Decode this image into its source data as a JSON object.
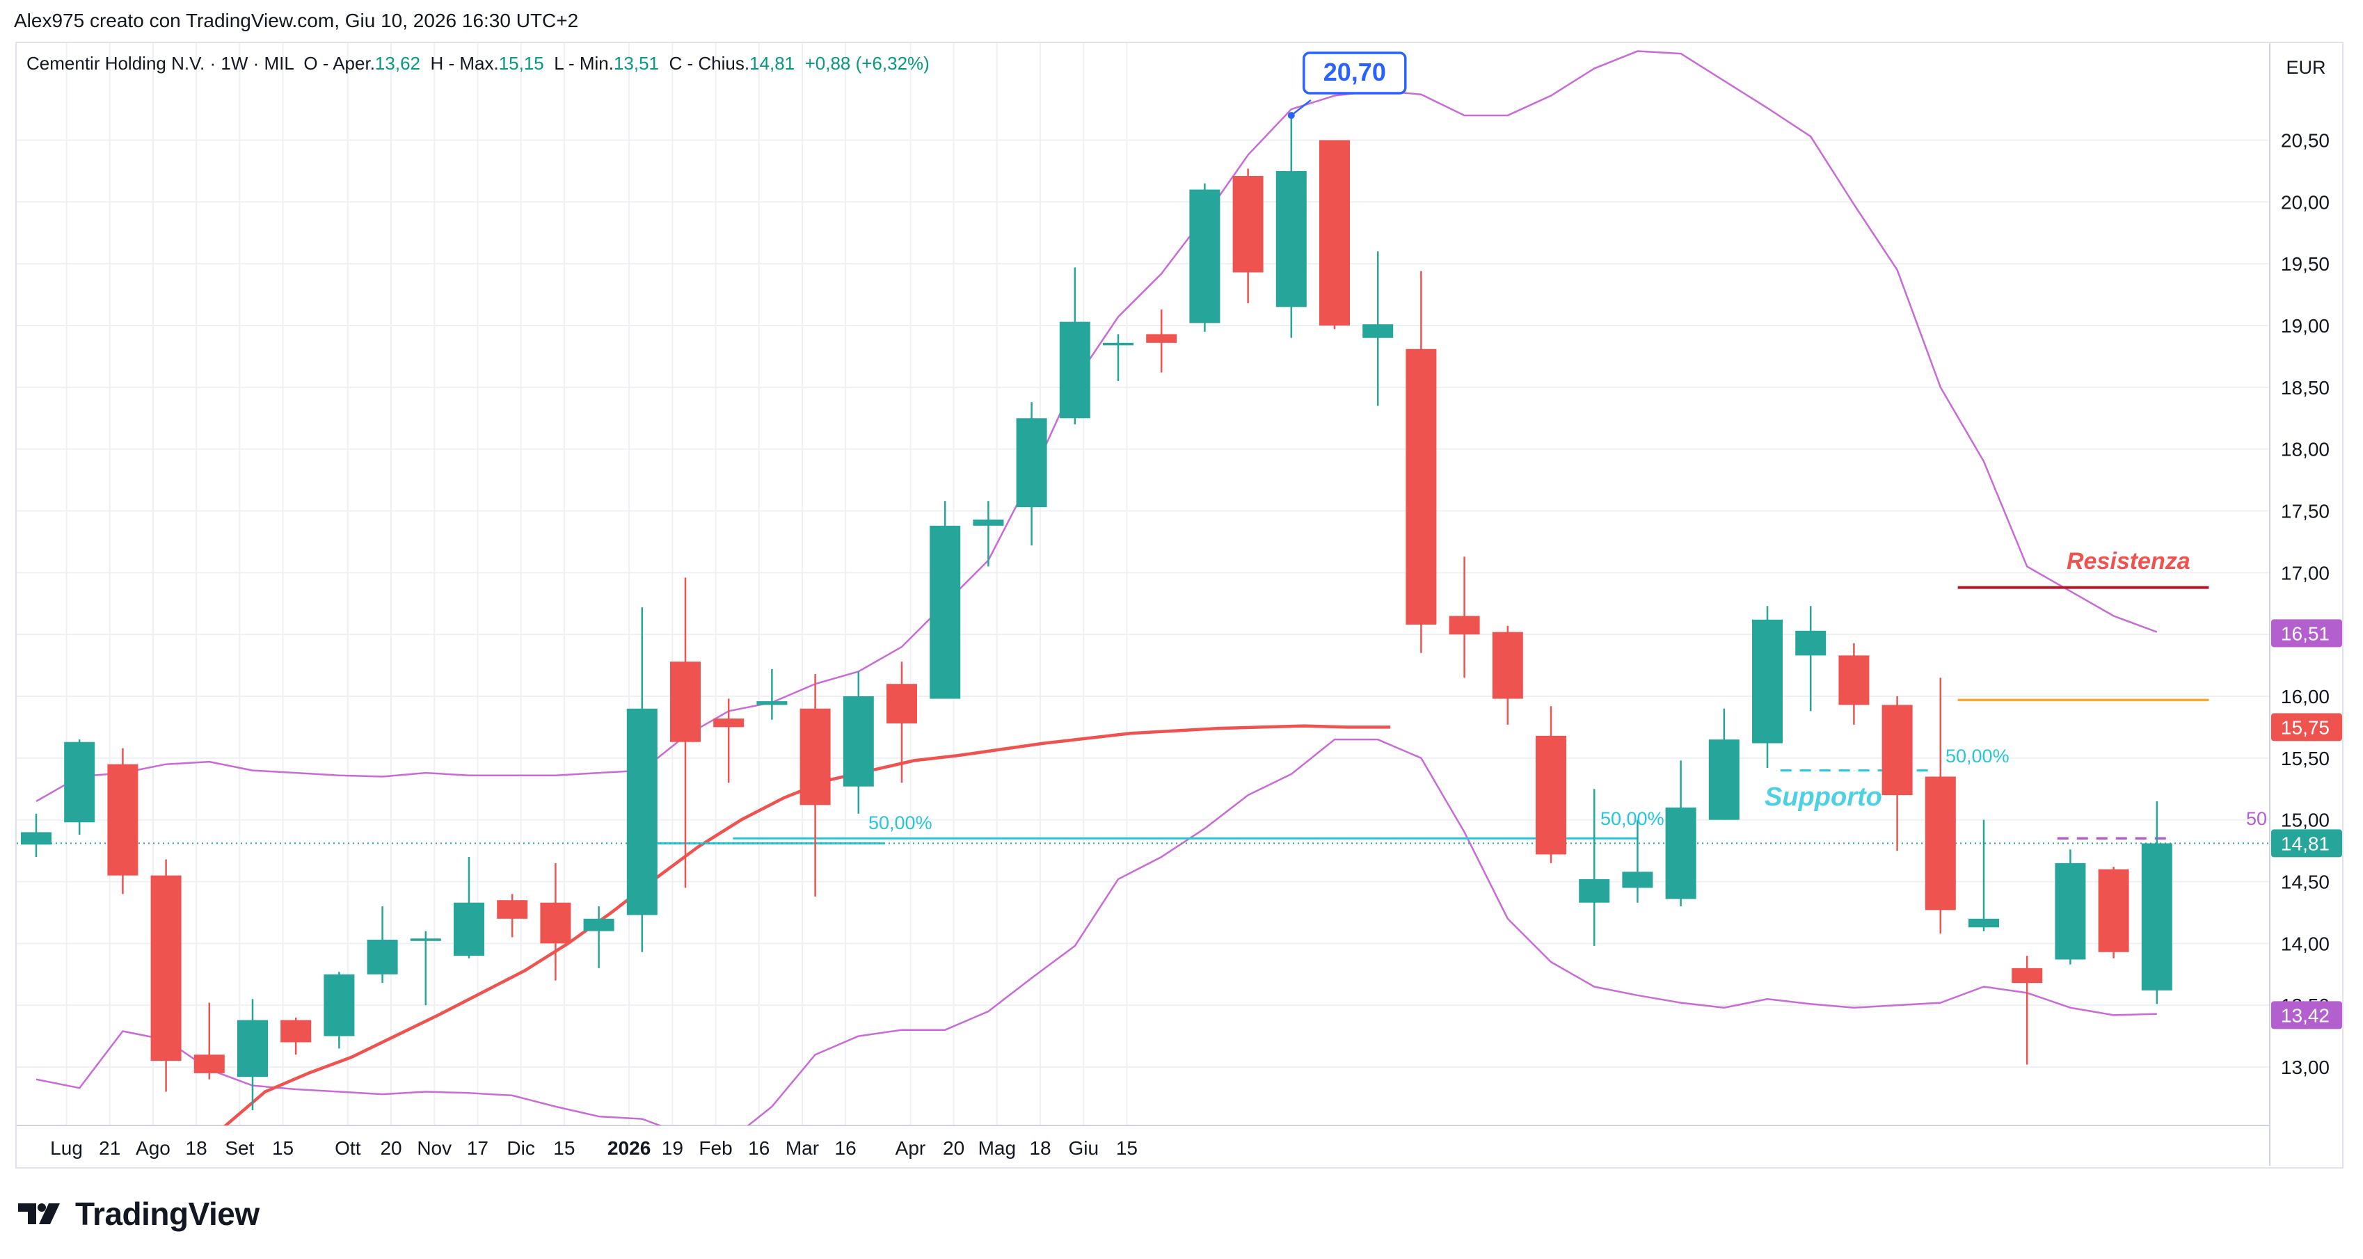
{
  "header": {
    "author_line": "Alex975 creato con TradingView.com, Giu 10, 2026 16:30 UTC+2"
  },
  "legend": {
    "symbol_info": "Cementir Holding N.V. · 1W · MIL",
    "open_label": "O - Aper.",
    "open_value": "13,62",
    "high_label": "H - Max.",
    "high_value": "15,15",
    "low_label": "L - Min.",
    "low_value": "13,51",
    "close_label": "C - Chius.",
    "close_value": "14,81",
    "change_value": "+0,88 (+6,32%)"
  },
  "brand": {
    "name": "TradingView"
  },
  "colors": {
    "up": "#26a69a",
    "down": "#ef5350",
    "bollinger": "#c86bd6",
    "ma": "#ef5350",
    "fib": "#26c6da",
    "grid": "#eef0f4",
    "resistance": "#b2182b",
    "orange_level": "#ffa726",
    "label_purple": "#b35fce"
  },
  "chart_data": {
    "type": "candlestick",
    "currency": "EUR",
    "ylim": [
      12.5,
      21.3
    ],
    "y_ticks": [
      {
        "value": 13.0,
        "label": "13,00"
      },
      {
        "value": 13.5,
        "label": "13,50"
      },
      {
        "value": 14.0,
        "label": "14,00"
      },
      {
        "value": 14.5,
        "label": "14,50"
      },
      {
        "value": 15.0,
        "label": "15,00"
      },
      {
        "value": 15.5,
        "label": "15,50"
      },
      {
        "value": 16.0,
        "label": "16,00"
      },
      {
        "value": 16.5,
        "label": "16,50"
      },
      {
        "value": 17.0,
        "label": "17,00"
      },
      {
        "value": 17.5,
        "label": "17,50"
      },
      {
        "value": 18.0,
        "label": "18,00"
      },
      {
        "value": 18.5,
        "label": "18,50"
      },
      {
        "value": 19.0,
        "label": "19,00"
      },
      {
        "value": 19.5,
        "label": "19,50"
      },
      {
        "value": 20.0,
        "label": "20,00"
      },
      {
        "value": 20.5,
        "label": "20,50"
      }
    ],
    "x_ticks": [
      {
        "index": 0.7,
        "label": "Lug",
        "bold": false
      },
      {
        "index": 1.7,
        "label": "21",
        "bold": false
      },
      {
        "index": 2.7,
        "label": "Ago",
        "bold": false
      },
      {
        "index": 3.7,
        "label": "18",
        "bold": false
      },
      {
        "index": 4.7,
        "label": "Set",
        "bold": false
      },
      {
        "index": 5.7,
        "label": "15",
        "bold": false
      },
      {
        "index": 7.2,
        "label": "Ott",
        "bold": false
      },
      {
        "index": 8.2,
        "label": "20",
        "bold": false
      },
      {
        "index": 9.2,
        "label": "Nov",
        "bold": false
      },
      {
        "index": 10.2,
        "label": "17",
        "bold": false
      },
      {
        "index": 11.2,
        "label": "Dic",
        "bold": false
      },
      {
        "index": 12.2,
        "label": "15",
        "bold": false
      },
      {
        "index": 13.7,
        "label": "2026",
        "bold": true
      },
      {
        "index": 14.7,
        "label": "19",
        "bold": false
      },
      {
        "index": 15.7,
        "label": "Feb",
        "bold": false
      },
      {
        "index": 16.7,
        "label": "16",
        "bold": false
      },
      {
        "index": 17.7,
        "label": "Mar",
        "bold": false
      },
      {
        "index": 18.7,
        "label": "16",
        "bold": false
      },
      {
        "index": 20.2,
        "label": "Apr",
        "bold": false
      },
      {
        "index": 21.2,
        "label": "20",
        "bold": false
      },
      {
        "index": 22.2,
        "label": "Mag",
        "bold": false
      },
      {
        "index": 23.2,
        "label": "18",
        "bold": false
      },
      {
        "index": 24.2,
        "label": "Giu",
        "bold": false
      },
      {
        "index": 25.2,
        "label": "15",
        "bold": false
      }
    ],
    "candles": [
      {
        "o": 14.8,
        "h": 15.05,
        "l": 14.7,
        "c": 14.9
      },
      {
        "o": 14.98,
        "h": 15.65,
        "l": 14.88,
        "c": 15.63
      },
      {
        "o": 15.45,
        "h": 15.58,
        "l": 14.4,
        "c": 14.55
      },
      {
        "o": 14.55,
        "h": 14.68,
        "l": 12.8,
        "c": 13.05
      },
      {
        "o": 13.1,
        "h": 13.52,
        "l": 12.9,
        "c": 12.95
      },
      {
        "o": 12.92,
        "h": 13.55,
        "l": 12.65,
        "c": 13.38
      },
      {
        "o": 13.38,
        "h": 13.4,
        "l": 13.1,
        "c": 13.2
      },
      {
        "o": 13.25,
        "h": 13.77,
        "l": 13.15,
        "c": 13.75
      },
      {
        "o": 13.75,
        "h": 14.3,
        "l": 13.68,
        "c": 14.03
      },
      {
        "o": 14.02,
        "h": 14.1,
        "l": 13.5,
        "c": 14.04
      },
      {
        "o": 13.9,
        "h": 14.7,
        "l": 13.88,
        "c": 14.33
      },
      {
        "o": 14.35,
        "h": 14.4,
        "l": 14.05,
        "c": 14.2
      },
      {
        "o": 14.33,
        "h": 14.65,
        "l": 13.7,
        "c": 14.0
      },
      {
        "o": 14.1,
        "h": 14.3,
        "l": 13.8,
        "c": 14.2
      },
      {
        "o": 14.23,
        "h": 16.72,
        "l": 13.93,
        "c": 15.9
      },
      {
        "o": 16.28,
        "h": 16.96,
        "l": 14.45,
        "c": 15.63
      },
      {
        "o": 15.82,
        "h": 15.98,
        "l": 15.3,
        "c": 15.75
      },
      {
        "o": 15.93,
        "h": 16.22,
        "l": 15.81,
        "c": 15.96
      },
      {
        "o": 15.9,
        "h": 16.18,
        "l": 14.38,
        "c": 15.12
      },
      {
        "o": 15.27,
        "h": 16.2,
        "l": 15.05,
        "c": 16.0
      },
      {
        "o": 16.1,
        "h": 16.28,
        "l": 15.3,
        "c": 15.78
      },
      {
        "o": 15.98,
        "h": 17.58,
        "l": 15.98,
        "c": 17.38
      },
      {
        "o": 17.38,
        "h": 17.58,
        "l": 17.05,
        "c": 17.43
      },
      {
        "o": 17.53,
        "h": 18.38,
        "l": 17.22,
        "c": 18.25
      },
      {
        "o": 18.25,
        "h": 19.47,
        "l": 18.2,
        "c": 19.03
      },
      {
        "o": 18.84,
        "h": 18.93,
        "l": 18.55,
        "c": 18.86
      },
      {
        "o": 18.93,
        "h": 19.13,
        "l": 18.62,
        "c": 18.86
      },
      {
        "o": 19.02,
        "h": 20.15,
        "l": 18.95,
        "c": 20.1
      },
      {
        "o": 20.21,
        "h": 20.27,
        "l": 19.18,
        "c": 19.43
      },
      {
        "o": 19.15,
        "h": 20.7,
        "l": 18.9,
        "c": 20.25
      },
      {
        "o": 20.5,
        "h": 20.5,
        "l": 18.97,
        "c": 19.0
      },
      {
        "o": 18.9,
        "h": 19.6,
        "l": 18.35,
        "c": 19.01
      },
      {
        "o": 18.81,
        "h": 19.44,
        "l": 16.35,
        "c": 16.58
      },
      {
        "o": 16.65,
        "h": 17.13,
        "l": 16.15,
        "c": 16.5
      },
      {
        "o": 16.52,
        "h": 16.57,
        "l": 15.77,
        "c": 15.98
      },
      {
        "o": 15.68,
        "h": 15.92,
        "l": 14.65,
        "c": 14.72
      },
      {
        "o": 14.33,
        "h": 15.25,
        "l": 13.98,
        "c": 14.52
      },
      {
        "o": 14.45,
        "h": 15.0,
        "l": 14.33,
        "c": 14.58
      },
      {
        "o": 14.36,
        "h": 15.48,
        "l": 14.3,
        "c": 15.1
      },
      {
        "o": 15.0,
        "h": 15.9,
        "l": 15.0,
        "c": 15.65
      },
      {
        "o": 15.62,
        "h": 16.73,
        "l": 15.42,
        "c": 16.62
      },
      {
        "o": 16.33,
        "h": 16.73,
        "l": 15.88,
        "c": 16.53
      },
      {
        "o": 16.33,
        "h": 16.43,
        "l": 15.77,
        "c": 15.93
      },
      {
        "o": 15.93,
        "h": 16.0,
        "l": 14.75,
        "c": 15.2
      },
      {
        "o": 15.35,
        "h": 16.15,
        "l": 14.08,
        "c": 14.27
      },
      {
        "o": 14.13,
        "h": 15.0,
        "l": 14.1,
        "c": 14.2
      },
      {
        "o": 13.8,
        "h": 13.9,
        "l": 13.02,
        "c": 13.68
      },
      {
        "o": 13.87,
        "h": 14.76,
        "l": 13.83,
        "c": 14.65
      },
      {
        "o": 14.6,
        "h": 14.62,
        "l": 13.88,
        "c": 13.93
      },
      {
        "o": 13.62,
        "h": 15.15,
        "l": 13.51,
        "c": 14.81
      }
    ],
    "bollinger_upper": [
      [
        0,
        15.15
      ],
      [
        1,
        15.35
      ],
      [
        2,
        15.38
      ],
      [
        3,
        15.45
      ],
      [
        4,
        15.47
      ],
      [
        5,
        15.4
      ],
      [
        6,
        15.38
      ],
      [
        7,
        15.36
      ],
      [
        8,
        15.35
      ],
      [
        9,
        15.38
      ],
      [
        10,
        15.36
      ],
      [
        11,
        15.36
      ],
      [
        12,
        15.36
      ],
      [
        13,
        15.38
      ],
      [
        14,
        15.4
      ],
      [
        15,
        15.68
      ],
      [
        16,
        15.88
      ],
      [
        17,
        15.95
      ],
      [
        18,
        16.1
      ],
      [
        19,
        16.2
      ],
      [
        20,
        16.4
      ],
      [
        21,
        16.75
      ],
      [
        22,
        17.1
      ],
      [
        23,
        17.78
      ],
      [
        24,
        18.55
      ],
      [
        25,
        19.07
      ],
      [
        26,
        19.42
      ],
      [
        27,
        19.88
      ],
      [
        28,
        20.38
      ],
      [
        29,
        20.75
      ],
      [
        30,
        20.86
      ],
      [
        31,
        20.9
      ],
      [
        32,
        20.87
      ],
      [
        33,
        20.7
      ],
      [
        34,
        20.7
      ],
      [
        35,
        20.86
      ],
      [
        36,
        21.08
      ],
      [
        37,
        21.22
      ],
      [
        38,
        21.2
      ],
      [
        39,
        20.98
      ],
      [
        40,
        20.76
      ],
      [
        41,
        20.53
      ],
      [
        42,
        19.98
      ],
      [
        43,
        19.45
      ],
      [
        44,
        18.5
      ],
      [
        45,
        17.9
      ],
      [
        46,
        17.05
      ],
      [
        47,
        16.85
      ],
      [
        48,
        16.65
      ],
      [
        49,
        16.52
      ]
    ],
    "bollinger_lower": [
      [
        0,
        12.9
      ],
      [
        1,
        12.83
      ],
      [
        2,
        13.29
      ],
      [
        3,
        13.22
      ],
      [
        4,
        12.98
      ],
      [
        5,
        12.85
      ],
      [
        6,
        12.82
      ],
      [
        7,
        12.8
      ],
      [
        8,
        12.78
      ],
      [
        9,
        12.8
      ],
      [
        10,
        12.79
      ],
      [
        11,
        12.77
      ],
      [
        12,
        12.68
      ],
      [
        13,
        12.6
      ],
      [
        14,
        12.58
      ],
      [
        15,
        12.45
      ],
      [
        16,
        12.4
      ],
      [
        17,
        12.68
      ],
      [
        18,
        13.1
      ],
      [
        19,
        13.25
      ],
      [
        20,
        13.3
      ],
      [
        21,
        13.3
      ],
      [
        22,
        13.45
      ],
      [
        23,
        13.72
      ],
      [
        24,
        13.98
      ],
      [
        25,
        14.52
      ],
      [
        26,
        14.7
      ],
      [
        27,
        14.93
      ],
      [
        28,
        15.2
      ],
      [
        29,
        15.37
      ],
      [
        30,
        15.65
      ],
      [
        31,
        15.65
      ],
      [
        32,
        15.5
      ],
      [
        33,
        14.9
      ],
      [
        34,
        14.2
      ],
      [
        35,
        13.85
      ],
      [
        36,
        13.65
      ],
      [
        37,
        13.58
      ],
      [
        38,
        13.52
      ],
      [
        39,
        13.48
      ],
      [
        40,
        13.55
      ],
      [
        41,
        13.51
      ],
      [
        42,
        13.48
      ],
      [
        43,
        13.5
      ],
      [
        44,
        13.52
      ],
      [
        45,
        13.65
      ],
      [
        46,
        13.6
      ],
      [
        47,
        13.48
      ],
      [
        48,
        13.42
      ],
      [
        49,
        13.43
      ]
    ],
    "moving_average": [
      [
        3.5,
        12.35
      ],
      [
        5,
        12.8
      ],
      [
        6,
        12.95
      ],
      [
        7,
        13.08
      ],
      [
        8,
        13.25
      ],
      [
        9,
        13.42
      ],
      [
        10,
        13.6
      ],
      [
        11,
        13.78
      ],
      [
        12,
        14.0
      ],
      [
        13,
        14.25
      ],
      [
        14,
        14.52
      ],
      [
        15,
        14.78
      ],
      [
        16,
        15.0
      ],
      [
        17,
        15.18
      ],
      [
        18,
        15.32
      ],
      [
        19,
        15.4
      ],
      [
        20,
        15.48
      ],
      [
        21,
        15.52
      ],
      [
        22,
        15.57
      ],
      [
        23,
        15.62
      ],
      [
        24,
        15.66
      ],
      [
        25,
        15.7
      ],
      [
        26,
        15.72
      ],
      [
        27,
        15.74
      ],
      [
        28,
        15.75
      ],
      [
        29,
        15.76
      ],
      [
        30,
        15.75
      ],
      [
        31,
        15.75
      ]
    ],
    "ma_x_offset": 18,
    "horizontal_levels": [
      {
        "name": "resistance",
        "price": 16.88,
        "from": 44.4,
        "to": 50.2
      },
      {
        "name": "orange-level",
        "price": 15.97,
        "from": 44.4,
        "to": 50.2
      },
      {
        "name": "support-dashed",
        "price": 15.4,
        "from": 40.3,
        "to": 43.8
      },
      {
        "name": "fib-upper",
        "price": 14.85,
        "from": 16.1,
        "to": 37.0
      },
      {
        "name": "fib-left",
        "price": 14.81,
        "from": 14.2,
        "to": 19.6
      },
      {
        "name": "purple-dashed",
        "price": 14.85,
        "from": 46.7,
        "to": 49.4
      }
    ],
    "annotations": {
      "peak_label": "20,70",
      "peak_price": 20.7,
      "peak_index": 29,
      "resistance_text": "Resistenza",
      "support_text": "Supporto",
      "fib_text_1": "50,00%",
      "fib_text_2": "50,00%",
      "fib_text_3": "50,00%",
      "purple_text": "50"
    },
    "price_tags": [
      {
        "value": 16.51,
        "label": "16,51",
        "color": "#b35fce"
      },
      {
        "value": 15.75,
        "label": "15,75",
        "color": "#ef5350"
      },
      {
        "value": 14.81,
        "label": "14,81",
        "color": "#26a69a"
      },
      {
        "value": 13.42,
        "label": "13,42",
        "color": "#b35fce"
      }
    ],
    "last_price": 14.81
  }
}
